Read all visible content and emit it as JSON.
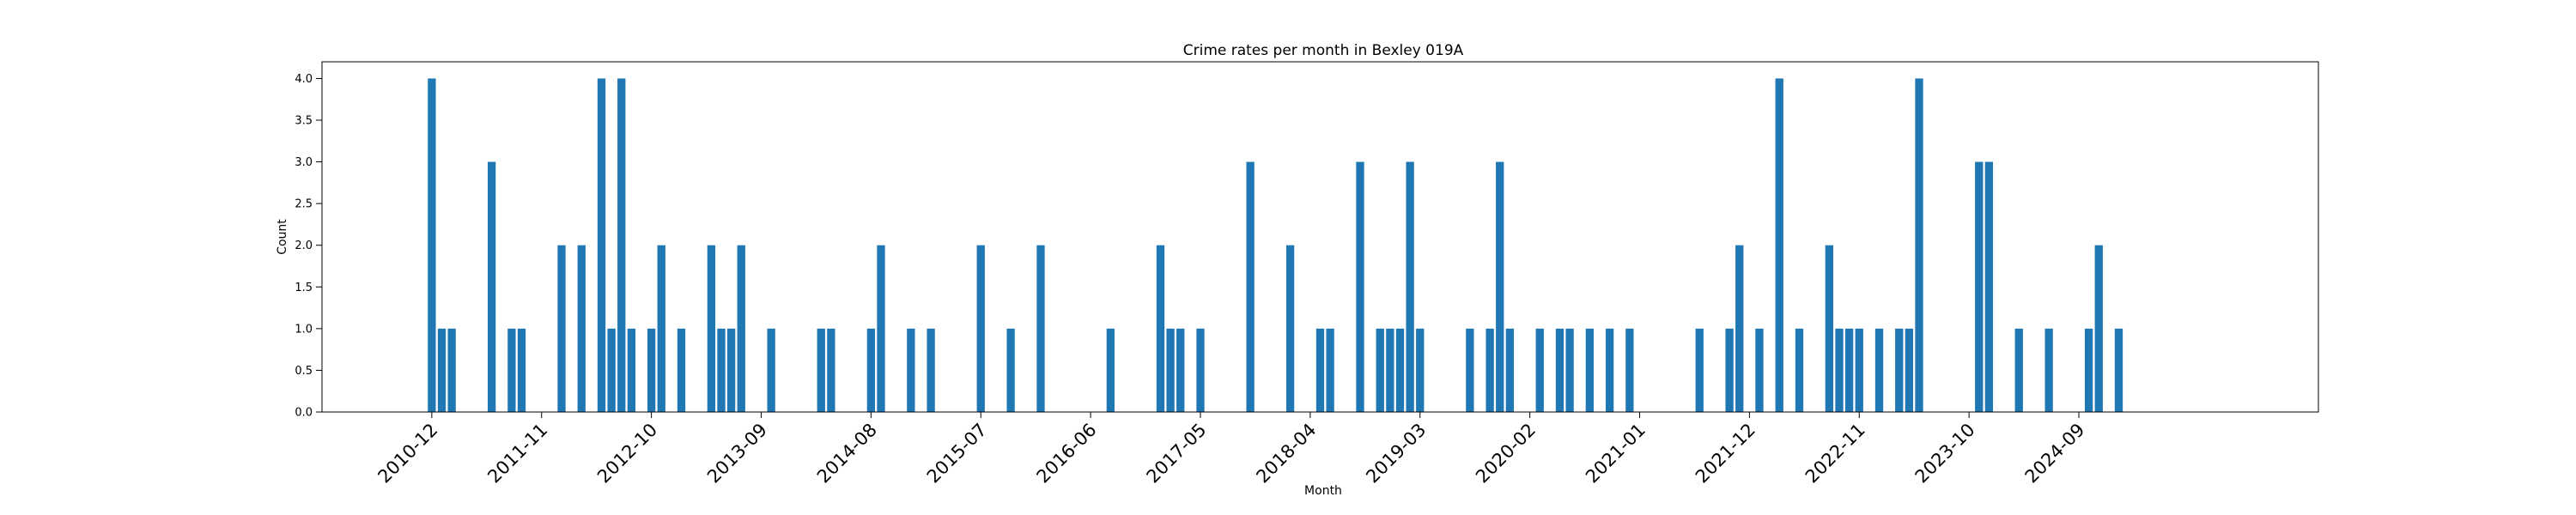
{
  "chart_data": {
    "type": "bar",
    "title": "Crime rates per month in Bexley 019A",
    "xlabel": "Month",
    "ylabel": "Count",
    "ylim": [
      0,
      4.2
    ],
    "xlim": [
      "2010-01",
      "2026-09"
    ],
    "bar_color": "#1f77b4",
    "grid": false,
    "legend": "none",
    "yticks": [
      "0.0",
      "0.5",
      "1.0",
      "1.5",
      "2.0",
      "2.5",
      "3.0",
      "3.5",
      "4.0"
    ],
    "xticks": [
      "2010-12",
      "2011-11",
      "2012-10",
      "2013-09",
      "2014-08",
      "2015-07",
      "2016-06",
      "2017-05",
      "2018-04",
      "2019-03",
      "2020-02",
      "2021-01",
      "2021-12",
      "2022-11",
      "2023-10",
      "2024-09"
    ],
    "bars": [
      {
        "x": "2010-12",
        "y": 4
      },
      {
        "x": "2011-01",
        "y": 1
      },
      {
        "x": "2011-02",
        "y": 1
      },
      {
        "x": "2011-06",
        "y": 3
      },
      {
        "x": "2011-08",
        "y": 1
      },
      {
        "x": "2011-09",
        "y": 1
      },
      {
        "x": "2012-01",
        "y": 2
      },
      {
        "x": "2012-03",
        "y": 2
      },
      {
        "x": "2012-05",
        "y": 4
      },
      {
        "x": "2012-06",
        "y": 1
      },
      {
        "x": "2012-07",
        "y": 4
      },
      {
        "x": "2012-08",
        "y": 1
      },
      {
        "x": "2012-10",
        "y": 1
      },
      {
        "x": "2012-11",
        "y": 2
      },
      {
        "x": "2013-01",
        "y": 1
      },
      {
        "x": "2013-04",
        "y": 2
      },
      {
        "x": "2013-05",
        "y": 1
      },
      {
        "x": "2013-06",
        "y": 1
      },
      {
        "x": "2013-07",
        "y": 2
      },
      {
        "x": "2013-10",
        "y": 1
      },
      {
        "x": "2014-03",
        "y": 1
      },
      {
        "x": "2014-04",
        "y": 1
      },
      {
        "x": "2014-08",
        "y": 1
      },
      {
        "x": "2014-09",
        "y": 2
      },
      {
        "x": "2014-12",
        "y": 1
      },
      {
        "x": "2015-02",
        "y": 1
      },
      {
        "x": "2015-07",
        "y": 2
      },
      {
        "x": "2015-10",
        "y": 1
      },
      {
        "x": "2016-01",
        "y": 2
      },
      {
        "x": "2016-08",
        "y": 1
      },
      {
        "x": "2017-01",
        "y": 2
      },
      {
        "x": "2017-02",
        "y": 1
      },
      {
        "x": "2017-03",
        "y": 1
      },
      {
        "x": "2017-05",
        "y": 1
      },
      {
        "x": "2017-10",
        "y": 3
      },
      {
        "x": "2018-02",
        "y": 2
      },
      {
        "x": "2018-05",
        "y": 1
      },
      {
        "x": "2018-06",
        "y": 1
      },
      {
        "x": "2018-09",
        "y": 3
      },
      {
        "x": "2018-11",
        "y": 1
      },
      {
        "x": "2018-12",
        "y": 1
      },
      {
        "x": "2019-01",
        "y": 1
      },
      {
        "x": "2019-02",
        "y": 3
      },
      {
        "x": "2019-03",
        "y": 1
      },
      {
        "x": "2019-08",
        "y": 1
      },
      {
        "x": "2019-10",
        "y": 1
      },
      {
        "x": "2019-11",
        "y": 3
      },
      {
        "x": "2019-12",
        "y": 1
      },
      {
        "x": "2020-03",
        "y": 1
      },
      {
        "x": "2020-05",
        "y": 1
      },
      {
        "x": "2020-06",
        "y": 1
      },
      {
        "x": "2020-08",
        "y": 1
      },
      {
        "x": "2020-10",
        "y": 1
      },
      {
        "x": "2020-12",
        "y": 1
      },
      {
        "x": "2021-07",
        "y": 1
      },
      {
        "x": "2021-10",
        "y": 1
      },
      {
        "x": "2021-11",
        "y": 2
      },
      {
        "x": "2022-01",
        "y": 1
      },
      {
        "x": "2022-03",
        "y": 4
      },
      {
        "x": "2022-05",
        "y": 1
      },
      {
        "x": "2022-08",
        "y": 2
      },
      {
        "x": "2022-09",
        "y": 1
      },
      {
        "x": "2022-10",
        "y": 1
      },
      {
        "x": "2022-11",
        "y": 1
      },
      {
        "x": "2023-01",
        "y": 1
      },
      {
        "x": "2023-03",
        "y": 1
      },
      {
        "x": "2023-04",
        "y": 1
      },
      {
        "x": "2023-05",
        "y": 4
      },
      {
        "x": "2023-11",
        "y": 3
      },
      {
        "x": "2023-12",
        "y": 3
      },
      {
        "x": "2024-03",
        "y": 1
      },
      {
        "x": "2024-06",
        "y": 1
      },
      {
        "x": "2024-10",
        "y": 1
      },
      {
        "x": "2024-11",
        "y": 2
      },
      {
        "x": "2025-01",
        "y": 1
      }
    ]
  }
}
